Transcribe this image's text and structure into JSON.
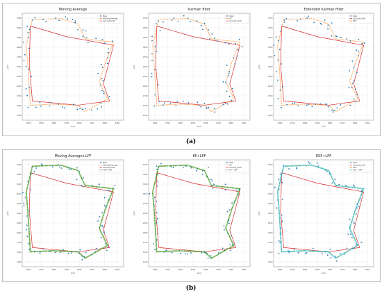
{
  "captions": [
    "(a)",
    "(b)"
  ],
  "colors": {
    "raw": "#1f77b4",
    "ground_truth": "#d62728",
    "moving_average": "#ff7f0e",
    "lpf_green": "#2ca02c",
    "ekf_lpf_cyan": "#17becf"
  },
  "chart_data": [
    {
      "type": "scatter",
      "title": "Moving Average",
      "xlabel": "x(m)",
      "ylabel": "y(m)",
      "xlim": [
        2450,
        3100
      ],
      "ylim": [
        1200,
        3800
      ],
      "x_ticks": [
        "2500",
        "2750",
        "3000",
        "2250",
        "2500",
        "2750",
        "3000",
        "3250"
      ],
      "y_ticks": [
        "3750",
        "3500",
        "3250",
        "3000",
        "2750",
        "2500",
        "2250",
        "2000",
        "1750",
        "1500",
        "1250"
      ],
      "grid": true,
      "legend_position": "top-right",
      "series": [
        {
          "name": "Raw",
          "role": "raw"
        },
        {
          "name": "Moving Average",
          "role": "moving_average"
        },
        {
          "name": "Ground_truth",
          "role": "ground_truth"
        }
      ]
    },
    {
      "type": "scatter",
      "title": "Kalman filter",
      "xlabel": "x(m)",
      "ylabel": "y(m)",
      "xlim": [
        2450,
        3100
      ],
      "ylim": [
        1200,
        3800
      ],
      "x_ticks": [
        "2500",
        "2750",
        "3000",
        "2250",
        "2500",
        "2750",
        "3000",
        "3250"
      ],
      "y_ticks": [
        "3750",
        "3500",
        "3250",
        "3000",
        "2750",
        "2500",
        "2250",
        "2000",
        "1750",
        "1500",
        "1250"
      ],
      "grid": true,
      "legend_position": "top-right",
      "series": [
        {
          "name": "Raw",
          "role": "raw"
        },
        {
          "name": "KF",
          "role": "moving_average"
        },
        {
          "name": "Ground_truth",
          "role": "ground_truth"
        }
      ]
    },
    {
      "type": "scatter",
      "title": "Extended Kalman filter",
      "xlabel": "x(m)",
      "ylabel": "y(m)",
      "xlim": [
        2450,
        3100
      ],
      "ylim": [
        1200,
        3800
      ],
      "x_ticks": [
        "2500",
        "2750",
        "3000",
        "2250",
        "2500",
        "2750",
        "3000",
        "3250"
      ],
      "y_ticks": [
        "3750",
        "3500",
        "3250",
        "3000",
        "2750",
        "2500",
        "2250",
        "2000",
        "1750",
        "1500",
        "1250"
      ],
      "grid": true,
      "legend_position": "top-right",
      "series": [
        {
          "name": "Raw",
          "role": "raw"
        },
        {
          "name": "Ground_truth",
          "role": "ground_truth"
        },
        {
          "name": "EKF",
          "role": "moving_average"
        }
      ]
    },
    {
      "type": "scatter",
      "title": "Moving Average+LPF",
      "xlabel": "x(m)",
      "ylabel": "y(m)",
      "xlim": [
        2450,
        3100
      ],
      "ylim": [
        1200,
        3800
      ],
      "x_ticks": [
        "2500",
        "2750",
        "3000",
        "2250",
        "2500",
        "2750",
        "3000",
        "3250"
      ],
      "y_ticks": [
        "3750",
        "3500",
        "3250",
        "3000",
        "2750",
        "2500",
        "2250",
        "2000",
        "1750",
        "1500",
        "1250"
      ],
      "grid": true,
      "legend_position": "top-right",
      "series": [
        {
          "name": "Raw",
          "role": "raw"
        },
        {
          "name": "Moving Average",
          "role": "moving_average"
        },
        {
          "name": "Ground_truth",
          "role": "ground_truth"
        },
        {
          "name": "MA-F+LPF",
          "role": "lpf_green"
        }
      ]
    },
    {
      "type": "scatter",
      "title": "KF+LPF",
      "xlabel": "x(m)",
      "ylabel": "y(m)",
      "xlim": [
        2450,
        3100
      ],
      "ylim": [
        1200,
        3800
      ],
      "x_ticks": [
        "2500",
        "2750",
        "3000",
        "2250",
        "2500",
        "2750",
        "3000",
        "3250"
      ],
      "y_ticks": [
        "3750",
        "3500",
        "3250",
        "3000",
        "2750",
        "2500",
        "2250",
        "2000",
        "1750",
        "1500",
        "1250"
      ],
      "grid": true,
      "legend_position": "top-right",
      "series": [
        {
          "name": "Raw",
          "role": "raw"
        },
        {
          "name": "KF",
          "role": "moving_average"
        },
        {
          "name": "Ground_truth",
          "role": "ground_truth"
        },
        {
          "name": "KF + LPF",
          "role": "lpf_green"
        }
      ]
    },
    {
      "type": "scatter",
      "title": "EKF+LPF",
      "xlabel": "x(m)",
      "ylabel": "y(m)",
      "xlim": [
        2450,
        3100
      ],
      "ylim": [
        1200,
        3800
      ],
      "x_ticks": [
        "2500",
        "2750",
        "3000",
        "2250",
        "2500",
        "2750",
        "3000",
        "3250"
      ],
      "y_ticks": [
        "3750",
        "3500",
        "3250",
        "3000",
        "2750",
        "2500",
        "2250",
        "2000",
        "1750",
        "1500",
        "1250"
      ],
      "grid": true,
      "legend_position": "top-right",
      "series": [
        {
          "name": "Raw",
          "role": "raw"
        },
        {
          "name": "Ground_truth",
          "role": "ground_truth"
        },
        {
          "name": "EKF",
          "role": "moving_average"
        },
        {
          "name": "EKF + LPF",
          "role": "ekf_lpf_cyan"
        }
      ]
    }
  ]
}
